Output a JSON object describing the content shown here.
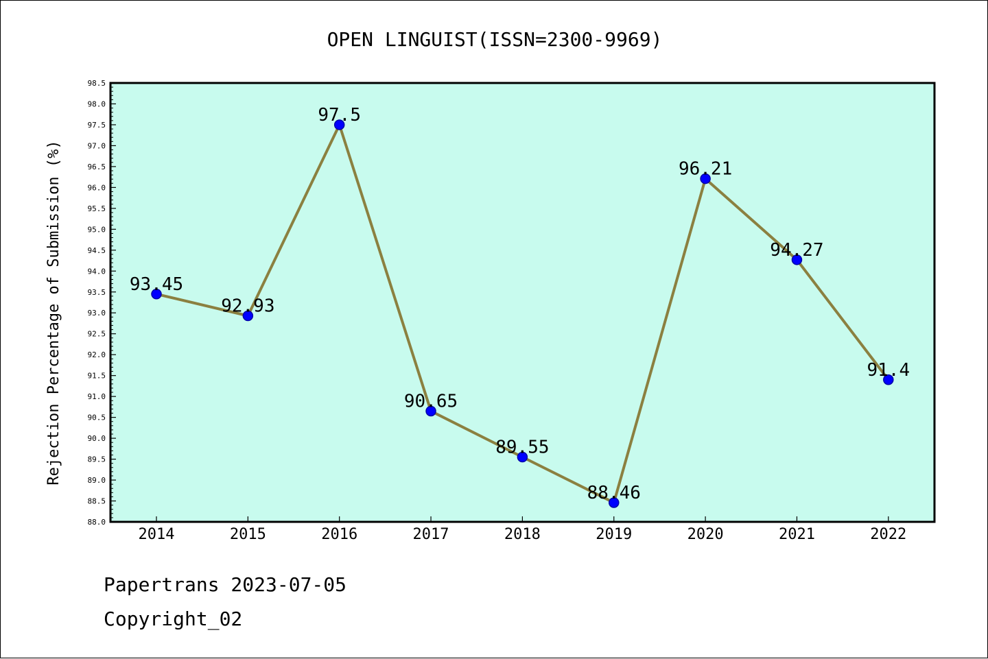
{
  "chart_data": {
    "type": "line",
    "title": "OPEN LINGUIST(ISSN=2300-9969)",
    "xlabel": "",
    "ylabel": "Rejection Percentage of Submission (%)",
    "categories": [
      "2014",
      "2015",
      "2016",
      "2017",
      "2018",
      "2019",
      "2020",
      "2021",
      "2022"
    ],
    "series": [
      {
        "values": [
          93.45,
          92.93,
          97.5,
          90.65,
          89.55,
          88.46,
          96.21,
          94.27,
          91.4
        ]
      }
    ],
    "data_labels": [
      "93.45",
      "92.93",
      "97.5",
      "90.65",
      "89.55",
      "88.46",
      "96.21",
      "94.27",
      "91.4"
    ],
    "ylim": [
      88.0,
      98.5
    ],
    "yticks": [
      "88.0",
      "88.5",
      "89.0",
      "89.5",
      "90.0",
      "90.5",
      "91.0",
      "91.5",
      "92.0",
      "92.5",
      "93.0",
      "93.5",
      "94.0",
      "94.5",
      "95.0",
      "95.5",
      "96.0",
      "96.5",
      "97.0",
      "97.5",
      "98.0",
      "98.5"
    ],
    "grid": false,
    "colors": {
      "plot_background": "#c8fbee",
      "line": "#8b8040",
      "marker": "#0000ff",
      "marker_edge": "#0000aa"
    }
  },
  "footer": {
    "line1": "Papertrans 2023-07-05",
    "line2": "Copyright_02"
  }
}
